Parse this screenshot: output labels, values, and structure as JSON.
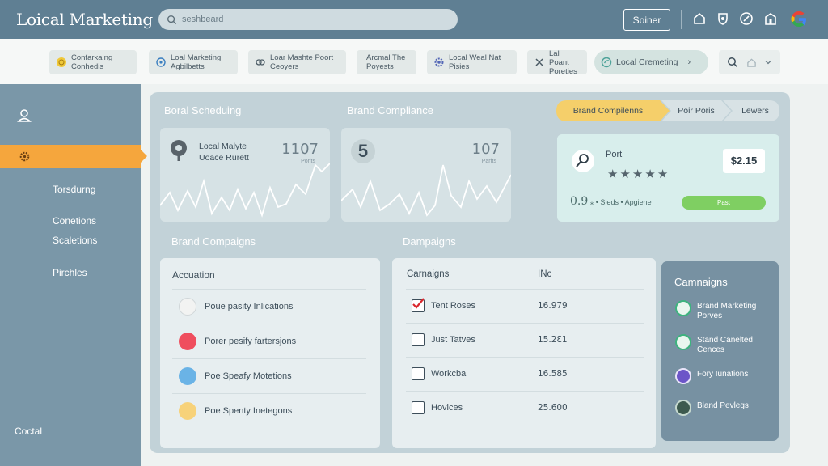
{
  "header": {
    "app_title": "Loical Marketing",
    "search_placeholder": "seshbeard",
    "button_label": "Soiner"
  },
  "filters": [
    {
      "label": "Confarkaing Conhedis",
      "icon": "coin-icon"
    },
    {
      "label": "Loal Marketing Agbilbetts",
      "icon": "sparkle-icon"
    },
    {
      "label": "Loar Mashte Poort Ceoyers",
      "icon": "link-icon"
    },
    {
      "label": "Arcmal The Poyests",
      "icon": "none"
    },
    {
      "label": "Local Weal Nat Pisies",
      "icon": "gear-icon"
    },
    {
      "label": "Lal Poant Poreties",
      "icon": "tools-icon"
    },
    {
      "label": "Local Cremeting",
      "icon": "leaf-icon"
    }
  ],
  "sidebar": {
    "items": [
      "",
      "",
      "Torsdurng",
      "Conetions",
      "Scaletions",
      "Pirchles"
    ],
    "footer": "Coctal"
  },
  "main": {
    "section1_title": "Boral Scheduing",
    "section2_title": "Brand Compliance",
    "breadcrumbs": [
      "Brand Compilenns",
      "Poir Poris",
      "Lewers"
    ],
    "card1": {
      "label_line1": "Local Malyte",
      "label_line2": "Uoace Rurett",
      "value": "1107",
      "sub": "Porits"
    },
    "card2": {
      "badge": "5",
      "value": "107",
      "sub": "Parfts"
    },
    "rating": {
      "label": "Port",
      "price": "$2.15",
      "stars": 5,
      "stat_big": "0.9",
      "stat_rest": "⁎  •  Sieds  •  Apgiene",
      "button": "Past"
    },
    "campaigns_title": "Brand Compaigns",
    "dampaigns_title": "Dampaigns",
    "accuation": {
      "header": "Accuation",
      "rows": [
        {
          "label": "Poue pasity Inlications",
          "color": "#f2f3f2"
        },
        {
          "label": "Porer pesify fartersjons",
          "color": "#ef4e5e"
        },
        {
          "label": "Poe Speafy Motetions",
          "color": "#6ab3e6"
        },
        {
          "label": "Poe Spenty Inetegons",
          "color": "#f7d27a"
        }
      ]
    },
    "table": {
      "col1": "Carnaigns",
      "col2": "INc",
      "rows": [
        {
          "name": "Tent Roses",
          "value": "16.979",
          "checked": true
        },
        {
          "name": "Just Tatves",
          "value": "15.2Ɛ1",
          "checked": false
        },
        {
          "name": "Workcba",
          "value": "16.585",
          "checked": false
        },
        {
          "name": "Hovices",
          "value": "25.600",
          "checked": false
        }
      ]
    },
    "side_panel": {
      "title": "Camnaigns",
      "items": [
        {
          "label": "Brand Marketing Porves",
          "color": "#3fb27f"
        },
        {
          "label": "Stand Canelted Cences",
          "color": "#3fb27f"
        },
        {
          "label": "Fory Iunations",
          "color": "#6c55c8"
        },
        {
          "label": "Bland Pevlegs",
          "color": "#3d5a4e"
        }
      ]
    }
  }
}
